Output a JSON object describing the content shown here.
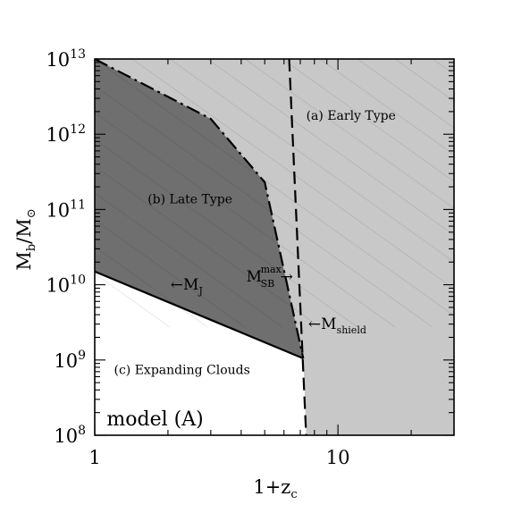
{
  "chart_data": {
    "type": "area",
    "title": "",
    "xlabel": {
      "base": "1+z",
      "sub": "c"
    },
    "ylabel": {
      "base": "M",
      "sub": "b",
      "mid": "/M",
      "sun": "⊙"
    },
    "xscale": "log",
    "yscale": "log",
    "xlim": [
      1,
      30
    ],
    "ylim": [
      100000000.0,
      10000000000000.0
    ],
    "grid": false,
    "x_ticks": [
      {
        "value": 1,
        "label": "1"
      },
      {
        "value": 10,
        "label": "10"
      }
    ],
    "y_ticks": [
      {
        "value": 100000000.0,
        "base": "10",
        "exp": "8"
      },
      {
        "value": 1000000000.0,
        "base": "10",
        "exp": "9"
      },
      {
        "value": 10000000000.0,
        "base": "10",
        "exp": "10"
      },
      {
        "value": 100000000000.0,
        "base": "10",
        "exp": "11"
      },
      {
        "value": 1000000000000.0,
        "base": "10",
        "exp": "12"
      },
      {
        "value": 10000000000000.0,
        "base": "10",
        "exp": "13"
      }
    ],
    "regions": [
      {
        "key": "a",
        "label": "(a) Early Type",
        "fill": "#c8c8c8",
        "label_x": 7.4,
        "label_y": 1550000000000.0
      },
      {
        "key": "b",
        "label": "(b) Late Type",
        "fill": "#6f6f6f",
        "label_x": 1.65,
        "label_y": 120000000000.0
      },
      {
        "key": "c",
        "label": "(c) Expanding Clouds",
        "fill": "#ffffff",
        "label_x": 1.2,
        "label_y": 650000000.0
      }
    ],
    "series": [
      {
        "name": "M_J",
        "style": "solid",
        "x": [
          1,
          7.2
        ],
        "y": [
          15000000000.0,
          1050000000.0
        ]
      },
      {
        "name": "M_SB^max",
        "style": "dashdot",
        "x": [
          1,
          3,
          5,
          7.2
        ],
        "y": [
          10000000000000.0,
          1600000000000.0,
          230000000000.0,
          1050000000.0
        ]
      },
      {
        "name": "M_shield",
        "style": "dashed",
        "x": [
          6.3,
          7.4
        ],
        "y": [
          10000000000000.0,
          100000000.0
        ]
      }
    ],
    "annotations": [
      {
        "key": "mj",
        "arrow": "←",
        "base": "M",
        "sub": "J",
        "x": 2.05,
        "y": 8600000000.0
      },
      {
        "key": "msb",
        "base": "M",
        "sub": "SB",
        "sup": "max",
        "arrow": "→",
        "x": 4.2,
        "y": 11000000000.0
      },
      {
        "key": "mshield",
        "arrow": "←",
        "base": "M",
        "sub": "shield",
        "x": 7.55,
        "y": 2600000000.0
      },
      {
        "key": "model",
        "text": "model (A)",
        "x": 1.12,
        "y": 135000000.0
      }
    ]
  }
}
